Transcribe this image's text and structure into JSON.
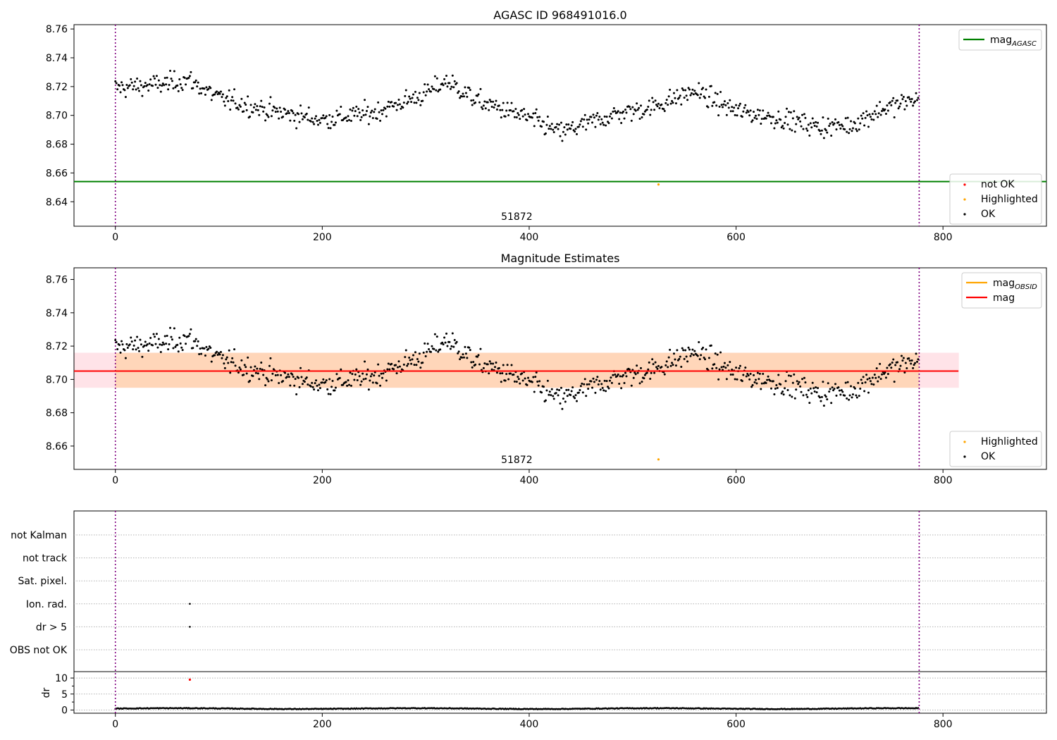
{
  "figure": {
    "title": "AGASC ID 968491016.0"
  },
  "chart_data": [
    {
      "type": "scatter",
      "title": "AGASC ID 968491016.0",
      "annotation": "51872",
      "xlim": [
        -40,
        900
      ],
      "ylim": [
        8.623,
        8.763
      ],
      "xticks": [
        0,
        200,
        400,
        600,
        800
      ],
      "yticks": [
        8.64,
        8.66,
        8.68,
        8.7,
        8.72,
        8.74,
        8.76
      ],
      "obs_boundaries": [
        0,
        777
      ],
      "reference_lines": [
        {
          "name": "mag_AGASC",
          "label": "mag",
          "sub": "AGASC",
          "y": 8.654,
          "color": "#008000"
        }
      ],
      "legend_top": [
        {
          "label": "mag",
          "sub": "AGASC",
          "kind": "line",
          "color": "#008000"
        }
      ],
      "legend_bottom": [
        {
          "label": "not OK",
          "kind": "dot",
          "color": "#ff0000"
        },
        {
          "label": "Highlighted",
          "kind": "dot",
          "color": "#ffa500"
        },
        {
          "label": "OK",
          "kind": "dot",
          "color": "#000000"
        }
      ],
      "highlighted": [
        {
          "x": 525,
          "y": 8.652
        }
      ],
      "series": {
        "n_points": 777,
        "color": "#000000",
        "trend": [
          [
            0,
            8.719
          ],
          [
            50,
            8.722
          ],
          [
            70,
            8.725
          ],
          [
            100,
            8.712
          ],
          [
            150,
            8.703
          ],
          [
            200,
            8.697
          ],
          [
            250,
            8.702
          ],
          [
            300,
            8.715
          ],
          [
            320,
            8.724
          ],
          [
            350,
            8.71
          ],
          [
            400,
            8.698
          ],
          [
            430,
            8.688
          ],
          [
            480,
            8.7
          ],
          [
            520,
            8.706
          ],
          [
            560,
            8.717
          ],
          [
            600,
            8.703
          ],
          [
            650,
            8.697
          ],
          [
            680,
            8.692
          ],
          [
            710,
            8.693
          ],
          [
            740,
            8.704
          ],
          [
            777,
            8.712
          ]
        ]
      }
    },
    {
      "type": "scatter",
      "title": "Magnitude Estimates",
      "annotation": "51872",
      "xlim": [
        -40,
        900
      ],
      "ylim": [
        8.646,
        8.767
      ],
      "xticks": [
        0,
        200,
        400,
        600,
        800
      ],
      "yticks": [
        8.66,
        8.68,
        8.7,
        8.72,
        8.74,
        8.76
      ],
      "obs_boundaries": [
        0,
        777
      ],
      "reference_lines": [
        {
          "name": "mag",
          "label": "mag",
          "y": 8.705,
          "x_range": [
            -40,
            815
          ],
          "color": "#ff0000"
        },
        {
          "name": "mag_OBSID",
          "label": "mag",
          "sub": "OBSID",
          "y": 8.705,
          "x_range": [
            0,
            777
          ],
          "color": "#ffa500"
        }
      ],
      "bands": [
        {
          "name": "mag range",
          "y_range": [
            8.695,
            8.716
          ],
          "x_range": [
            -40,
            815
          ],
          "color": "#ffc0cb"
        },
        {
          "name": "mag_OBSID range",
          "y_range": [
            8.695,
            8.716
          ],
          "x_range": [
            0,
            777
          ],
          "color": "#ffa500"
        }
      ],
      "legend_top": [
        {
          "label": "mag",
          "sub": "OBSID",
          "kind": "line",
          "color": "#ffa500"
        },
        {
          "label": "mag",
          "kind": "line",
          "color": "#ff0000"
        }
      ],
      "legend_bottom": [
        {
          "label": "Highlighted",
          "kind": "dot",
          "color": "#ffa500"
        },
        {
          "label": "OK",
          "kind": "dot",
          "color": "#000000"
        }
      ],
      "highlighted": [
        {
          "x": 525,
          "y": 8.652
        }
      ]
    },
    {
      "type": "scatter",
      "title": "",
      "xlim": [
        -40,
        900
      ],
      "xticks": [
        0,
        200,
        400,
        600,
        800
      ],
      "obs_boundaries": [
        0,
        777
      ],
      "flag_rows": [
        "not Kalman",
        "not track",
        "Sat. pixel.",
        "Ion. rad.",
        "dr > 5",
        "OBS not OK"
      ],
      "flag_points": [
        {
          "row": "Ion. rad.",
          "x": 72
        },
        {
          "row": "dr > 5",
          "x": 72
        }
      ],
      "dr": {
        "ylabel": "dr",
        "ylim": [
          -1,
          12
        ],
        "yticks": [
          0,
          5,
          10
        ],
        "typical_range": [
          0.1,
          0.8
        ],
        "outlier": {
          "x": 72,
          "y": 9.5,
          "color": "#ff0000"
        }
      }
    }
  ]
}
